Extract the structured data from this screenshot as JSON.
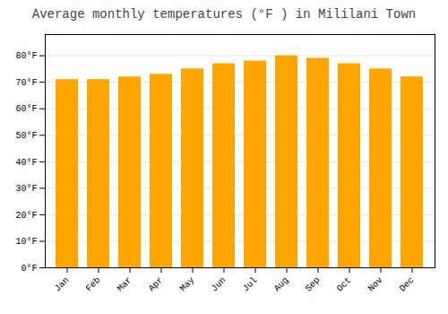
{
  "chart_data": {
    "type": "bar",
    "title": "Average monthly temperatures (°F ) in Mililani Town",
    "categories": [
      "Jan",
      "Feb",
      "Mar",
      "Apr",
      "May",
      "Jun",
      "Jul",
      "Aug",
      "Sep",
      "Oct",
      "Nov",
      "Dec"
    ],
    "values": [
      71,
      71,
      72,
      73,
      75,
      77,
      78,
      80,
      79,
      77,
      75,
      72
    ],
    "color": "#FFA500",
    "ylim": [
      0,
      88
    ],
    "yticks": [
      {
        "value": 0,
        "label": "0°F"
      },
      {
        "value": 10,
        "label": "10°F"
      },
      {
        "value": 20,
        "label": "20°F"
      },
      {
        "value": 30,
        "label": "30°F"
      },
      {
        "value": 40,
        "label": "40°F"
      },
      {
        "value": 50,
        "label": "50°F"
      },
      {
        "value": 60,
        "label": "60°F"
      },
      {
        "value": 70,
        "label": "70°F"
      },
      {
        "value": 80,
        "label": "80°F"
      }
    ],
    "grid": true
  }
}
